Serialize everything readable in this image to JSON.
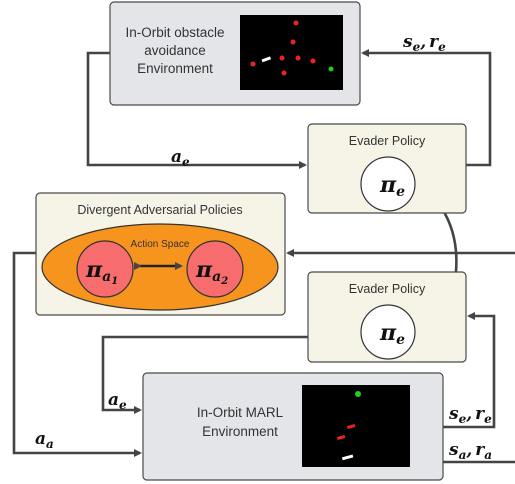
{
  "environment_top": {
    "lines": [
      "In-Orbit obstacle",
      "avoidance",
      "Environment"
    ]
  },
  "evader_policy_top": {
    "title": "Evader Policy",
    "symbol": "π",
    "sub": "e"
  },
  "divergent": {
    "title": "Divergent Adversarial Policies",
    "action_space": "Action Space",
    "policy_1": {
      "symbol": "π",
      "sub": "a",
      "subsub": "1"
    },
    "policy_2": {
      "symbol": "π",
      "sub": "a",
      "subsub": "2"
    }
  },
  "evader_policy_bottom": {
    "title": "Evader Policy",
    "symbol": "π",
    "sub": "e"
  },
  "environment_bottom": {
    "lines": [
      "In-Orbit MARL",
      "Environment"
    ]
  },
  "edges": {
    "action_top": {
      "symbol": "a",
      "sub": "e"
    },
    "obs_top": {
      "symbol1": "s",
      "sub1": "e",
      "separator": ",",
      "symbol2": "r",
      "sub2": "e"
    },
    "action_evader": {
      "symbol": "a",
      "sub": "e"
    },
    "action_adversary": {
      "symbol": "a",
      "sub": "a"
    },
    "obs_evader": {
      "symbol1": "s",
      "sub1": "e",
      "separator": ",",
      "symbol2": "r",
      "sub2": "e"
    },
    "obs_adversary": {
      "symbol1": "s",
      "sub1": "a",
      "separator": ",",
      "symbol2": "r",
      "sub2": "a"
    }
  }
}
